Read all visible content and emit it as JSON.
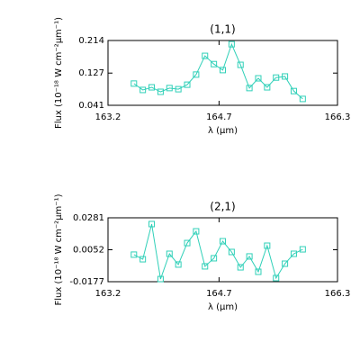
{
  "chart_data": [
    {
      "type": "line",
      "title": "(1,1)",
      "xlabel": "λ (μm)",
      "ylabel": "Flux (10⁻¹⁸ W cm⁻²μm⁻¹)",
      "x": [
        163.55,
        163.67,
        163.79,
        163.91,
        164.03,
        164.15,
        164.27,
        164.39,
        164.51,
        164.63,
        164.75,
        164.87,
        164.99,
        165.11,
        165.23,
        165.35,
        165.47,
        165.59,
        165.71,
        165.83
      ],
      "series": [
        {
          "name": "(1,1)",
          "color": "#2fd0b8",
          "values": [
            0.099,
            0.082,
            0.089,
            0.077,
            0.087,
            0.084,
            0.096,
            0.123,
            0.173,
            0.151,
            0.135,
            0.204,
            0.149,
            0.087,
            0.113,
            0.089,
            0.115,
            0.118,
            0.079,
            0.058
          ]
        }
      ],
      "xlim": [
        163.2,
        166.3
      ],
      "xticks": [
        163.2,
        164.7,
        166.3
      ],
      "ylim": [
        0.041,
        0.214
      ],
      "yticks": [
        0.041,
        0.127,
        0.214
      ]
    },
    {
      "type": "line",
      "title": "(2,1)",
      "xlabel": "λ (μm)",
      "ylabel": "Flux (10⁻¹⁸ W cm⁻²μm⁻¹)",
      "x": [
        163.55,
        163.67,
        163.79,
        163.91,
        164.03,
        164.15,
        164.27,
        164.39,
        164.51,
        164.63,
        164.75,
        164.87,
        164.99,
        165.11,
        165.23,
        165.35,
        165.47,
        165.59,
        165.71,
        165.83
      ],
      "series": [
        {
          "name": "(2,1)",
          "color": "#2fd0b8",
          "values": [
            0.0017,
            -0.0016,
            0.0236,
            -0.0158,
            0.0023,
            -0.0054,
            0.01,
            0.0184,
            -0.0067,
            -0.0009,
            0.0113,
            0.0036,
            -0.0074,
            0.0004,
            -0.0106,
            0.0081,
            -0.0151,
            -0.0048,
            0.0023,
            0.0055
          ]
        }
      ],
      "xlim": [
        163.2,
        166.3
      ],
      "xticks": [
        163.2,
        164.7,
        166.3
      ],
      "ylim": [
        -0.0177,
        0.0281
      ],
      "yticks": [
        -0.0177,
        0.0052,
        0.0281
      ]
    }
  ]
}
